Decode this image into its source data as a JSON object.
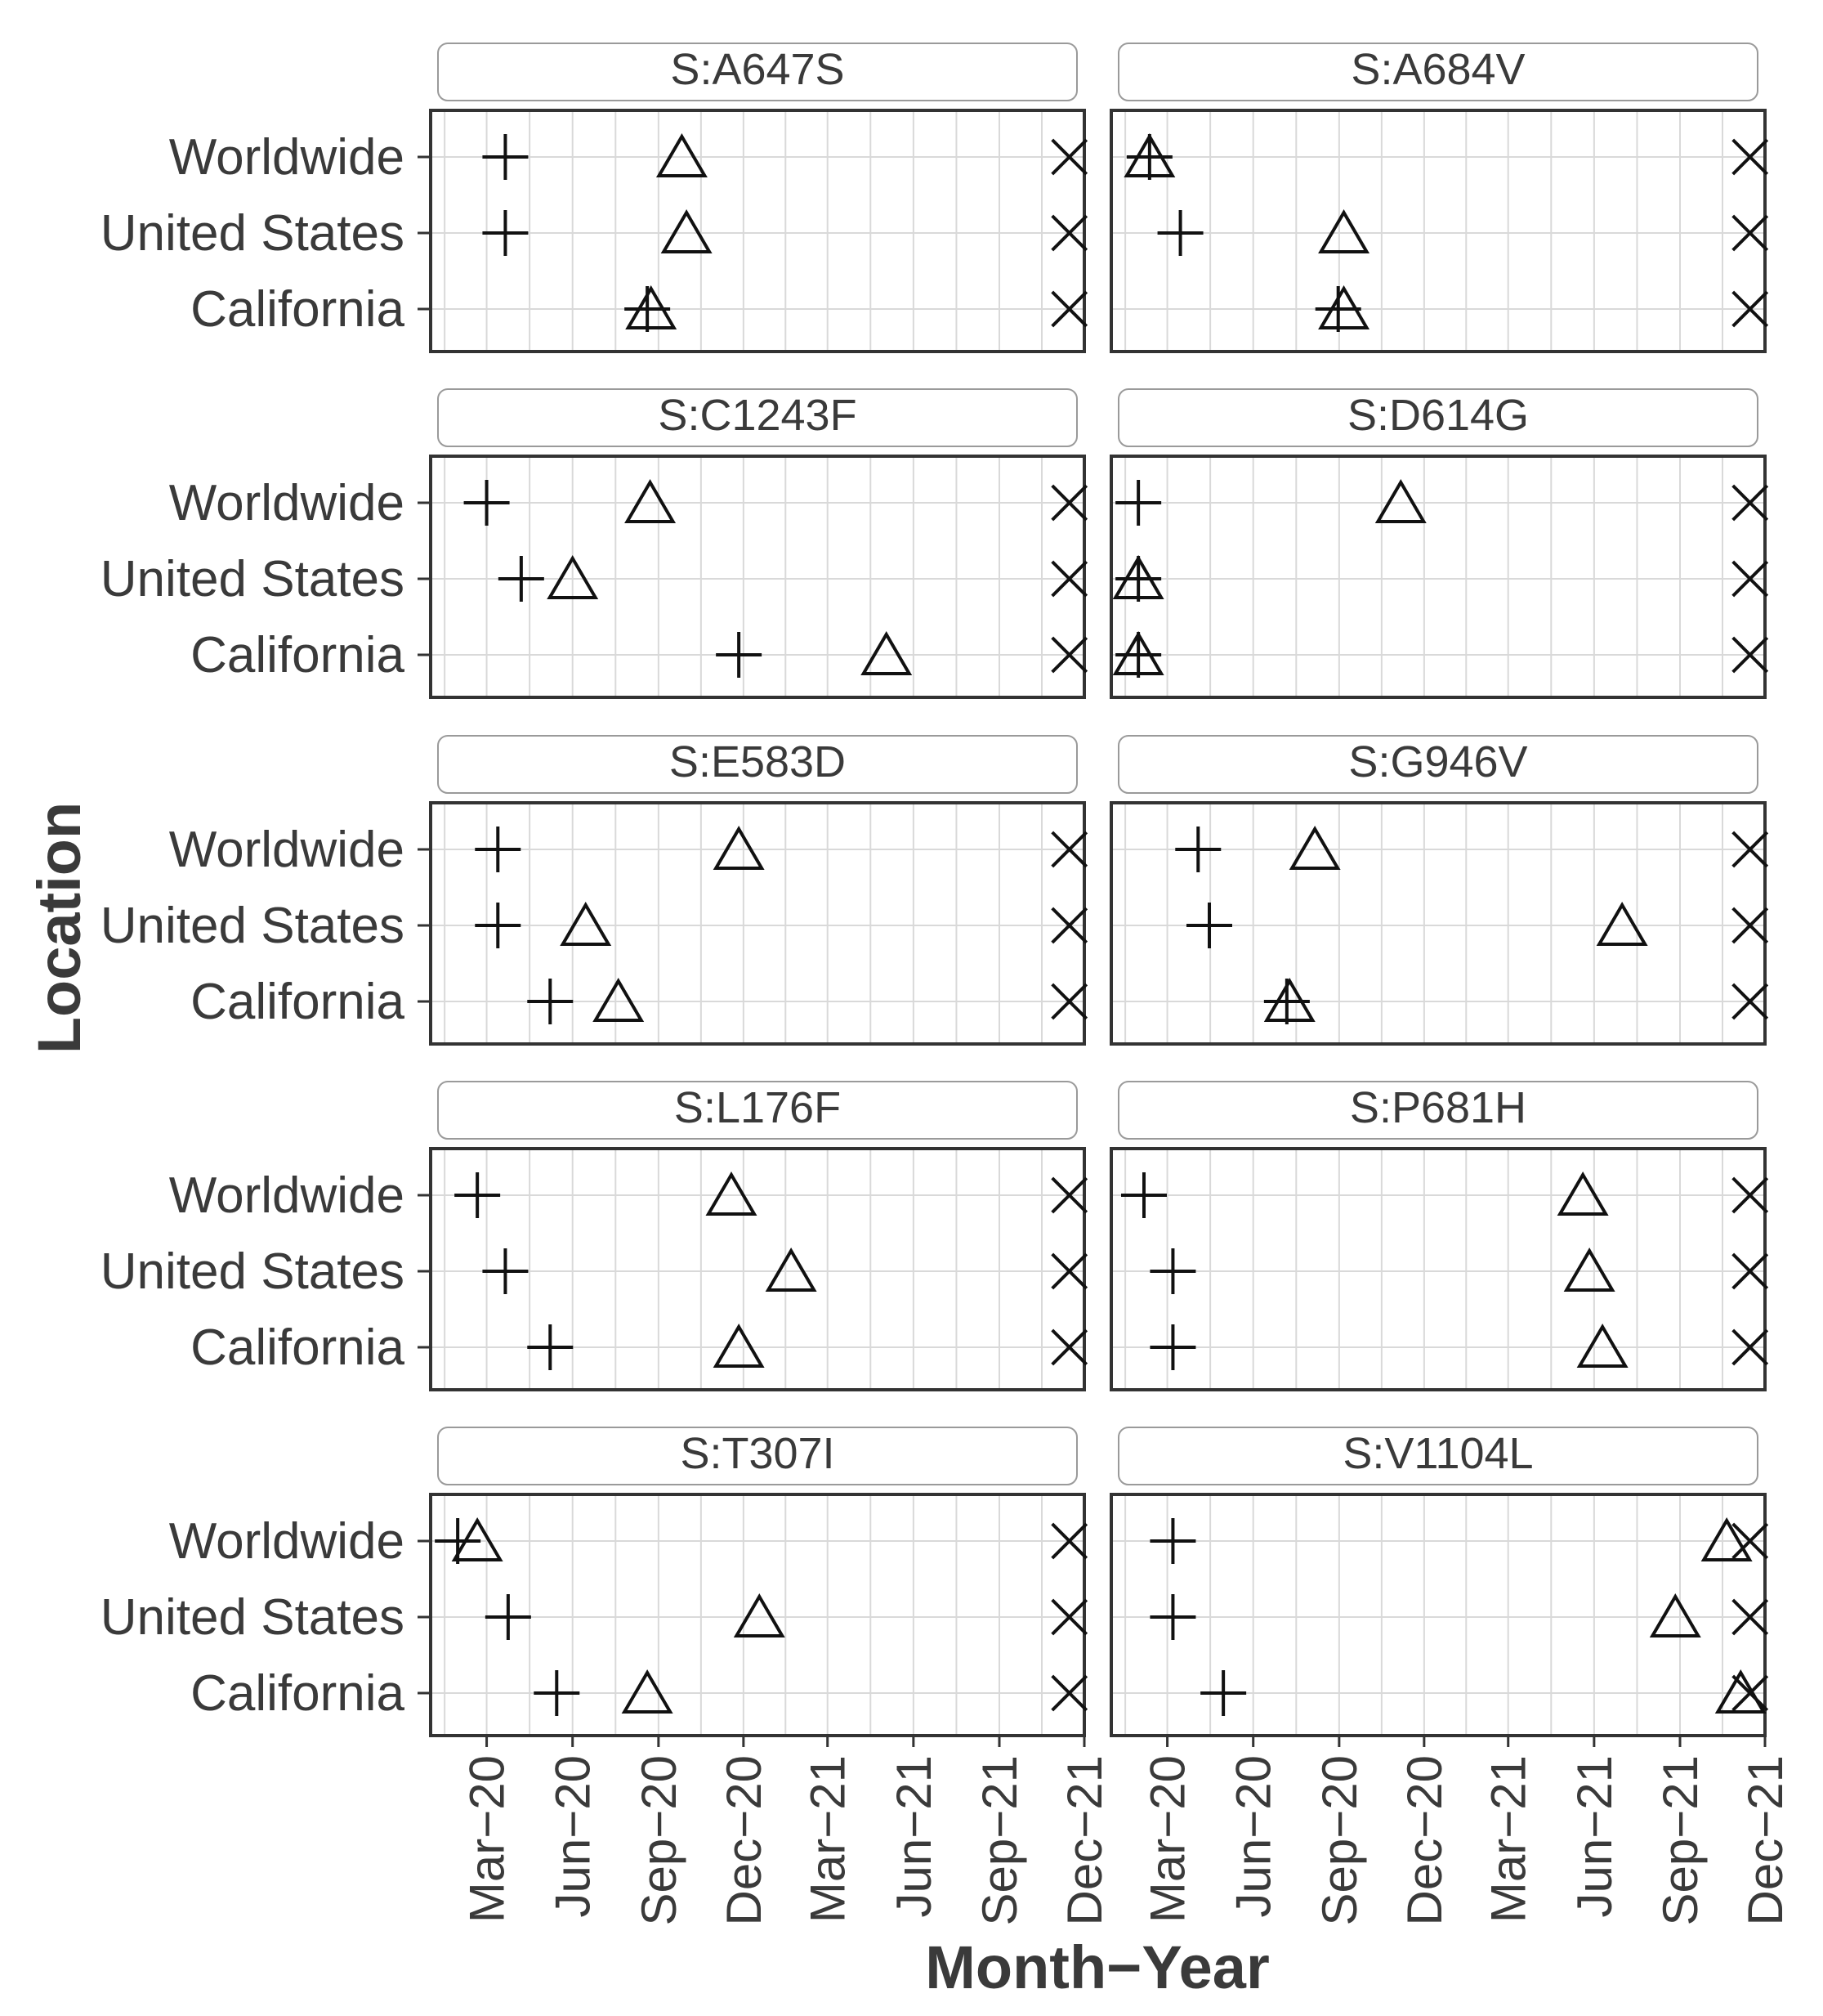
{
  "chart_data": {
    "type": "scatter",
    "xlabel": "Month−Year",
    "ylabel": "Location",
    "x_ticks": [
      "Mar−20",
      "Jun−20",
      "Sep−20",
      "Dec−20",
      "Mar−21",
      "Jun−21",
      "Sep−21",
      "Dec−21"
    ],
    "xlim": [
      "2020-01-01",
      "2021-12-01"
    ],
    "y_categories": [
      "Worldwide",
      "United States",
      "California"
    ],
    "grid": true,
    "legend": "none",
    "markers": {
      "first_detection": "plus",
      "threshold": "triangle",
      "end": "x"
    },
    "panels": [
      {
        "title": "S:A647S",
        "rows": [
          {
            "location": "Worldwide",
            "plus": "2020-03-21",
            "triangle": "2020-09-26",
            "x": "2021-11-15"
          },
          {
            "location": "United States",
            "plus": "2020-03-21",
            "triangle": "2020-10-01",
            "x": "2021-11-15"
          },
          {
            "location": "California",
            "plus": "2020-08-20",
            "triangle": "2020-08-24",
            "x": "2021-11-15"
          }
        ]
      },
      {
        "title": "S:A684V",
        "rows": [
          {
            "location": "Worldwide",
            "plus": "2020-02-11",
            "triangle": "2020-02-11",
            "x": "2021-11-15"
          },
          {
            "location": "United States",
            "plus": "2020-03-15",
            "triangle": "2020-09-06",
            "x": "2021-11-15"
          },
          {
            "location": "California",
            "plus": "2020-08-31",
            "triangle": "2020-09-06",
            "x": "2021-11-15"
          }
        ]
      },
      {
        "title": "S:C1243F",
        "rows": [
          {
            "location": "Worldwide",
            "plus": "2020-03-01",
            "triangle": "2020-08-23",
            "x": "2021-11-15"
          },
          {
            "location": "United States",
            "plus": "2020-04-07",
            "triangle": "2020-06-01",
            "x": "2021-11-15"
          },
          {
            "location": "California",
            "plus": "2020-11-26",
            "triangle": "2021-05-03",
            "x": "2021-11-15"
          }
        ]
      },
      {
        "title": "S:D614G",
        "rows": [
          {
            "location": "Worldwide",
            "plus": "2020-01-30",
            "triangle": "2020-11-06",
            "x": "2021-11-15"
          },
          {
            "location": "United States",
            "plus": "2020-01-30",
            "triangle": "2020-01-30",
            "x": "2021-11-15"
          },
          {
            "location": "California",
            "plus": "2020-01-30",
            "triangle": "2020-01-30",
            "x": "2021-11-15"
          }
        ]
      },
      {
        "title": "S:E583D",
        "rows": [
          {
            "location": "Worldwide",
            "plus": "2020-03-13",
            "triangle": "2020-11-26",
            "x": "2021-11-15"
          },
          {
            "location": "United States",
            "plus": "2020-03-13",
            "triangle": "2020-06-15",
            "x": "2021-11-15"
          },
          {
            "location": "California",
            "plus": "2020-05-08",
            "triangle": "2020-07-20",
            "x": "2021-11-15"
          }
        ]
      },
      {
        "title": "S:G946V",
        "rows": [
          {
            "location": "Worldwide",
            "plus": "2020-04-03",
            "triangle": "2020-08-06",
            "x": "2021-11-15"
          },
          {
            "location": "United States",
            "plus": "2020-04-15",
            "triangle": "2021-07-01",
            "x": "2021-11-15"
          },
          {
            "location": "California",
            "plus": "2020-07-07",
            "triangle": "2020-07-10",
            "x": "2021-11-15"
          }
        ]
      },
      {
        "title": "S:L176F",
        "rows": [
          {
            "location": "Worldwide",
            "plus": "2020-02-20",
            "triangle": "2020-11-18",
            "x": "2021-11-15"
          },
          {
            "location": "United States",
            "plus": "2020-03-21",
            "triangle": "2021-01-21",
            "x": "2021-11-15"
          },
          {
            "location": "California",
            "plus": "2020-05-08",
            "triangle": "2020-11-26",
            "x": "2021-11-15"
          }
        ]
      },
      {
        "title": "S:P681H",
        "rows": [
          {
            "location": "Worldwide",
            "plus": "2020-02-05",
            "triangle": "2021-05-20",
            "x": "2021-11-15"
          },
          {
            "location": "United States",
            "plus": "2020-03-07",
            "triangle": "2021-05-27",
            "x": "2021-11-15"
          },
          {
            "location": "California",
            "plus": "2020-03-07",
            "triangle": "2021-06-10",
            "x": "2021-11-15"
          }
        ]
      },
      {
        "title": "S:T307I",
        "rows": [
          {
            "location": "Worldwide",
            "plus": "2020-01-30",
            "triangle": "2020-02-20",
            "x": "2021-11-15"
          },
          {
            "location": "United States",
            "plus": "2020-03-24",
            "triangle": "2020-12-18",
            "x": "2021-11-15"
          },
          {
            "location": "California",
            "plus": "2020-05-15",
            "triangle": "2020-08-20",
            "x": "2021-11-15"
          }
        ]
      },
      {
        "title": "S:V1104L",
        "rows": [
          {
            "location": "Worldwide",
            "plus": "2020-03-07",
            "triangle": "2021-10-21",
            "x": "2021-11-15"
          },
          {
            "location": "United States",
            "plus": "2020-03-07",
            "triangle": "2021-08-27",
            "x": "2021-11-15"
          },
          {
            "location": "California",
            "plus": "2020-04-30",
            "triangle": "2021-11-05",
            "x": "2021-11-15"
          }
        ]
      }
    ]
  }
}
